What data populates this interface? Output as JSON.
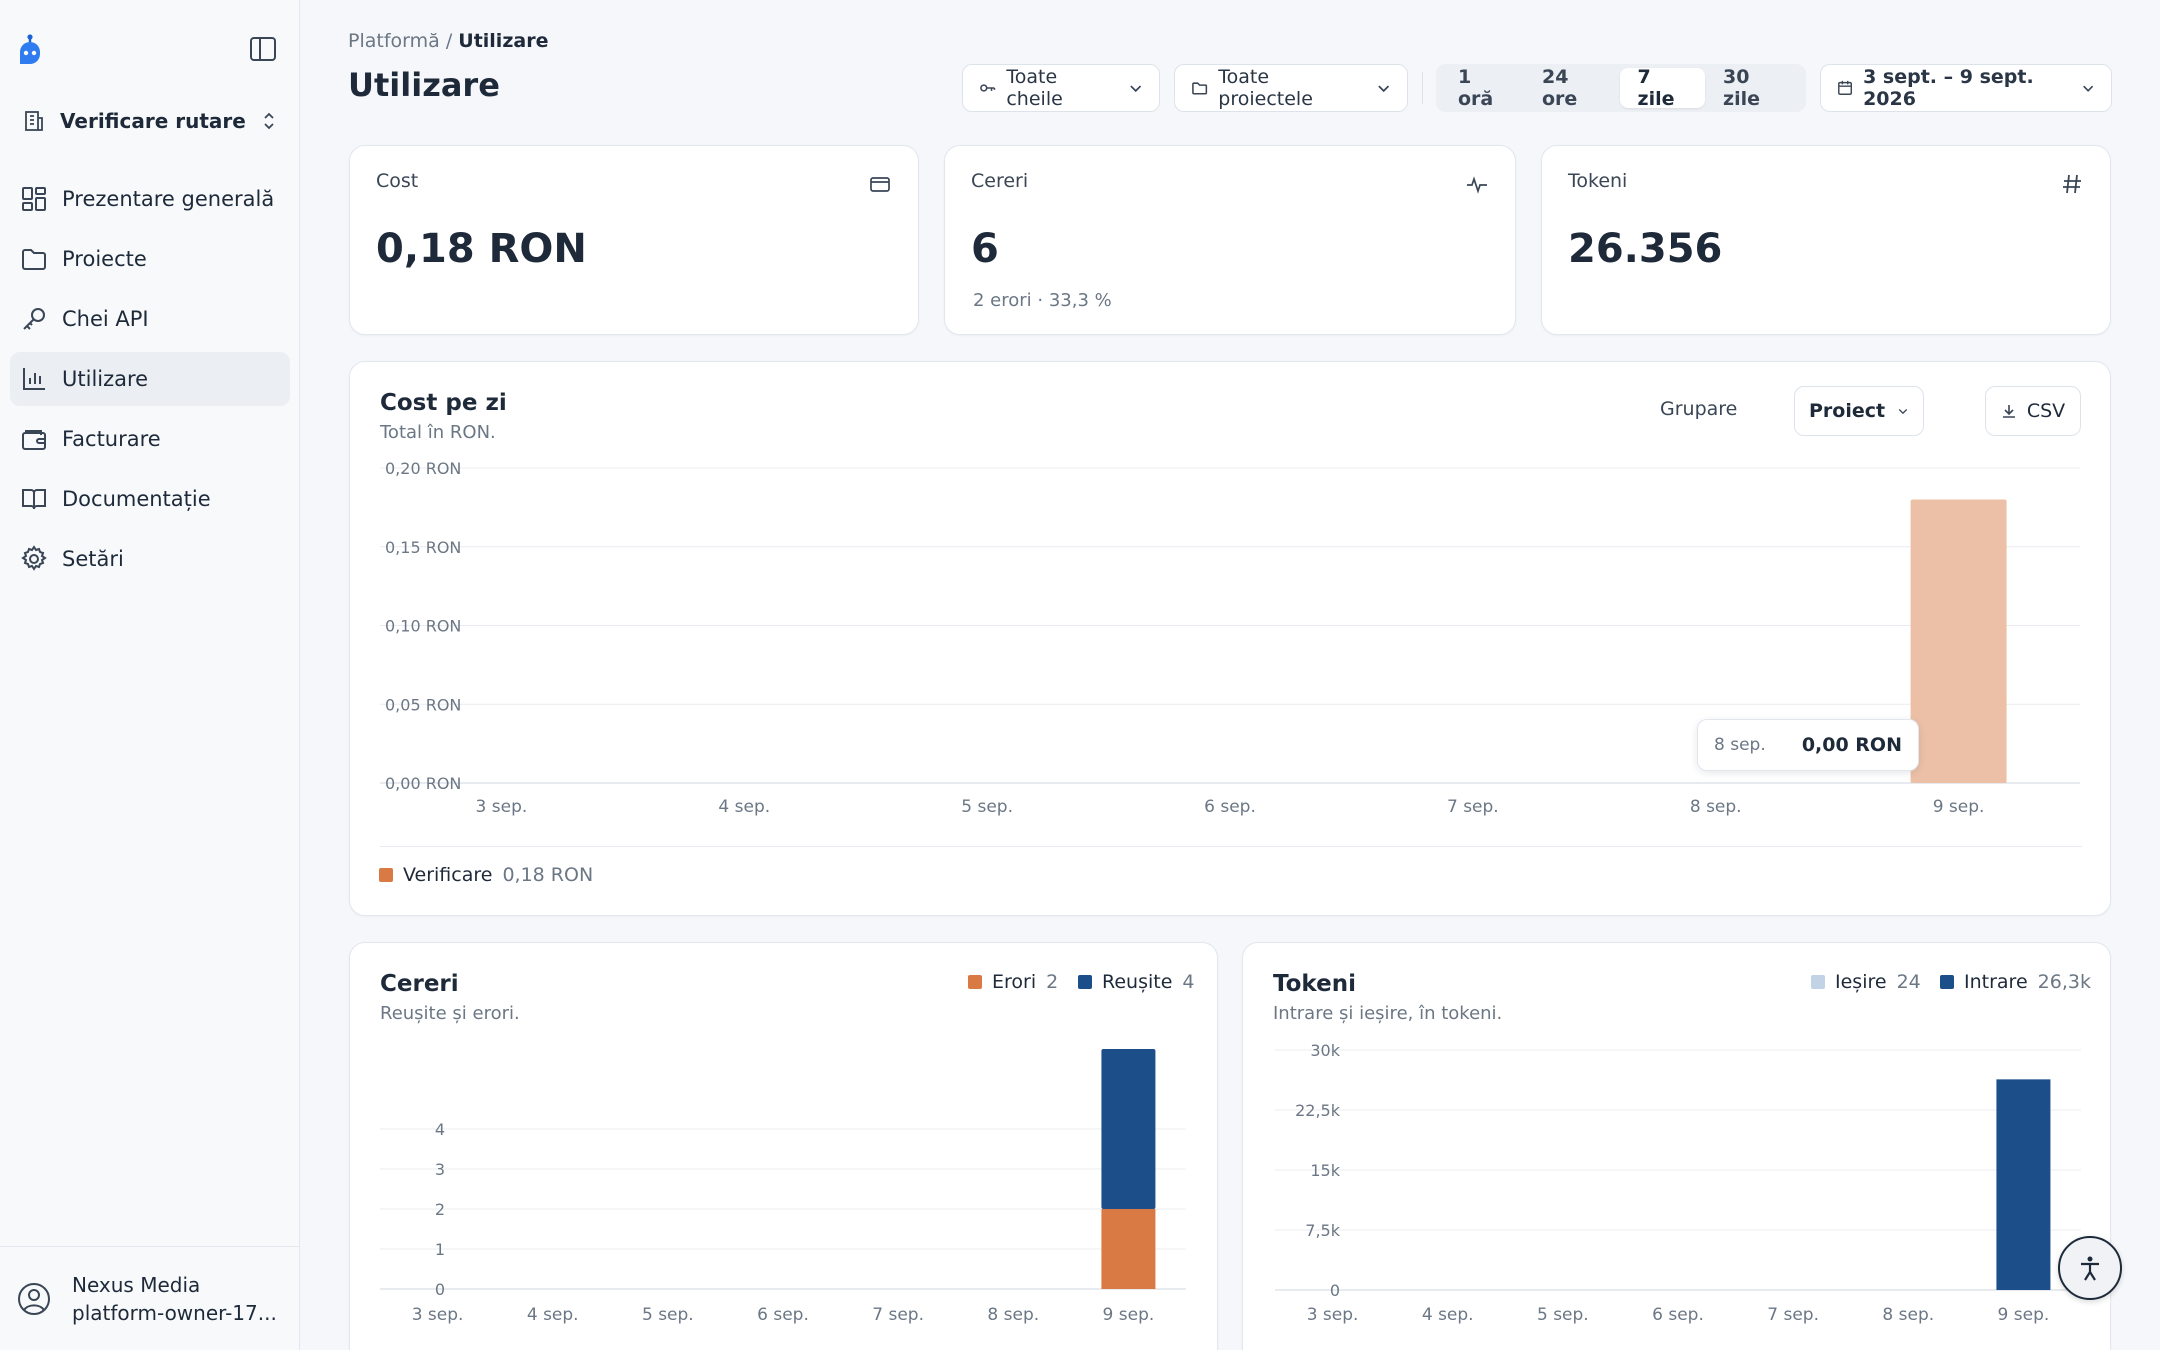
{
  "sidebar": {
    "org_name": "Verificare rutare",
    "items": [
      {
        "label": "Prezentare generală",
        "icon": "dashboard-icon"
      },
      {
        "label": "Proiecte",
        "icon": "folder-icon"
      },
      {
        "label": "Chei API",
        "icon": "key-icon"
      },
      {
        "label": "Utilizare",
        "icon": "bar-chart-icon",
        "active": true
      },
      {
        "label": "Facturare",
        "icon": "wallet-icon"
      },
      {
        "label": "Documentație",
        "icon": "book-icon"
      },
      {
        "label": "Setări",
        "icon": "gear-icon"
      }
    ],
    "user": {
      "name": "Nexus Media",
      "email": "platform-owner-17..."
    }
  },
  "header": {
    "breadcrumb_parent": "Platformă",
    "breadcrumb_sep": " / ",
    "breadcrumb_current": "Utilizare",
    "title": "Utilizare",
    "keys_filter": "Toate cheile",
    "projects_filter": "Toate proiectele",
    "ranges": [
      "1 oră",
      "24 ore",
      "7 zile",
      "30 zile"
    ],
    "active_range": "7 zile",
    "date_range": "3 sept. – 9 sept. 2026"
  },
  "stats": {
    "cost": {
      "label": "Cost",
      "value": "0,18 RON",
      "icon": "credit-card-icon"
    },
    "requests": {
      "label": "Cereri",
      "value": "6",
      "sub": "2 erori · 33,3 %",
      "icon": "activity-icon"
    },
    "tokens": {
      "label": "Tokeni",
      "value": "26.356",
      "icon": "hash-icon"
    }
  },
  "cost_card": {
    "title": "Cost pe zi",
    "subtitle": "Total în RON.",
    "group_label": "Grupare",
    "group_value": "Proiect",
    "csv_label": "CSV",
    "legend": {
      "name": "Verificare",
      "value": "0,18 RON"
    },
    "tooltip": {
      "label": "8 sep.",
      "value": "0,00 RON"
    }
  },
  "requests_card": {
    "title": "Cereri",
    "subtitle": "Reușite și erori.",
    "legend": [
      {
        "name": "Erori",
        "value": "2"
      },
      {
        "name": "Reușite",
        "value": "4"
      }
    ]
  },
  "tokens_card": {
    "title": "Tokeni",
    "subtitle": "Intrare și ieșire, în tokeni.",
    "legend": [
      {
        "name": "Ieșire",
        "value": "24"
      },
      {
        "name": "Intrare",
        "value": "26,3k"
      }
    ]
  },
  "colors": {
    "cost_bar": "#ebc0a6",
    "errors": "#d97a45",
    "success": "#1c4f89",
    "output": "#c3d3e6",
    "input": "#1c4f89"
  },
  "chart_data": [
    {
      "type": "bar",
      "title": "Cost pe zi",
      "categories": [
        "3 sep.",
        "4 sep.",
        "5 sep.",
        "6 sep.",
        "7 sep.",
        "8 sep.",
        "9 sep."
      ],
      "series": [
        {
          "name": "Verificare",
          "values": [
            0,
            0,
            0,
            0,
            0,
            0,
            0.18
          ]
        }
      ],
      "y_ticks": [
        "0,00 RON",
        "0,05 RON",
        "0,10 RON",
        "0,15 RON",
        "0,20 RON"
      ],
      "ylim": [
        0,
        0.2
      ],
      "grid": true
    },
    {
      "type": "bar",
      "title": "Cereri",
      "stacked": true,
      "categories": [
        "3 sep.",
        "4 sep.",
        "5 sep.",
        "6 sep.",
        "7 sep.",
        "8 sep.",
        "9 sep."
      ],
      "series": [
        {
          "name": "Erori",
          "values": [
            0,
            0,
            0,
            0,
            0,
            0,
            2
          ]
        },
        {
          "name": "Reușite",
          "values": [
            0,
            0,
            0,
            0,
            0,
            0,
            4
          ]
        }
      ],
      "y_ticks": [
        "0",
        "1",
        "2",
        "3",
        "4"
      ],
      "grid": true
    },
    {
      "type": "bar",
      "title": "Tokeni",
      "stacked": true,
      "categories": [
        "3 sep.",
        "4 sep.",
        "5 sep.",
        "6 sep.",
        "7 sep.",
        "8 sep.",
        "9 sep."
      ],
      "series": [
        {
          "name": "Intrare",
          "values": [
            0,
            0,
            0,
            0,
            0,
            0,
            26332
          ]
        },
        {
          "name": "Ieșire",
          "values": [
            0,
            0,
            0,
            0,
            0,
            0,
            24
          ]
        }
      ],
      "y_ticks": [
        "0",
        "7,5k",
        "15k",
        "22,5k",
        "30k"
      ],
      "ylim": [
        0,
        30000
      ],
      "grid": true
    }
  ]
}
